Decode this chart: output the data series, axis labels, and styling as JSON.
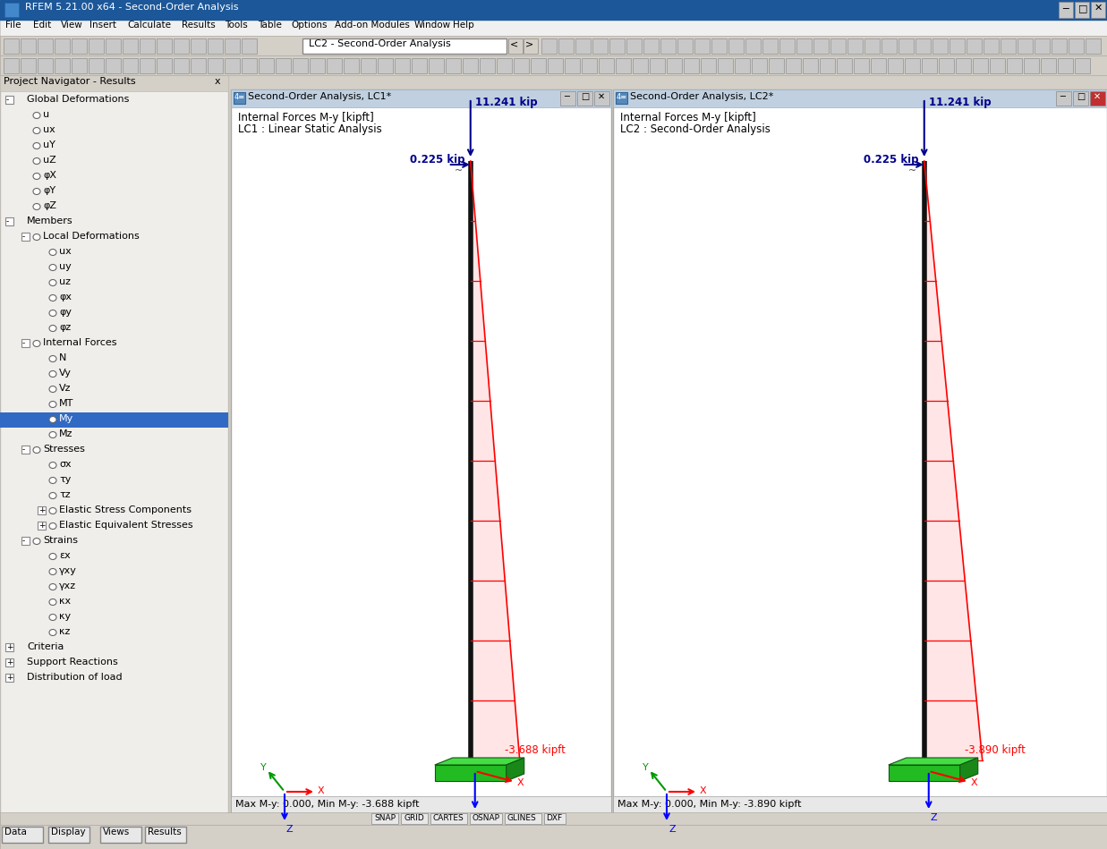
{
  "title_bar": "RFEM 5.21.00 x64 - Second-Order Analysis",
  "menu_items": [
    "File",
    "Edit",
    "View",
    "Insert",
    "Calculate",
    "Results",
    "Tools",
    "Table",
    "Options",
    "Add-on Modules",
    "Window",
    "Help"
  ],
  "lc_dropdown": "LC2 - Second-Order Analysis",
  "nav_title": "Project Navigator - Results",
  "panel1_title": "Second-Order Analysis, LC1*",
  "panel1_line1": "Internal Forces M-y [kipft]",
  "panel1_line2": "LC1 : Linear Static Analysis",
  "panel1_force1": "11.241 kip",
  "panel1_force2": "0.225 kip",
  "panel1_moment": "-3.688 kipft",
  "panel1_status": "Max M-y: 0.000, Min M-y: -3.688 kipft",
  "panel2_title": "Second-Order Analysis, LC2*",
  "panel2_line1": "Internal Forces M-y [kipft]",
  "panel2_line2": "LC2 : Second-Order Analysis",
  "panel2_force1": "11.241 kip",
  "panel2_force2": "0.225 kip",
  "panel2_moment": "-3.890 kipft",
  "panel2_status": "Max M-y: 0.000, Min M-y: -3.890 kipft",
  "bg_color": "#d4d0c8",
  "panel_bg": "#ffffff",
  "titlebar_blue": "#1a5799",
  "panel_titlebar": "#bdd0e0",
  "force_color": "#00008b",
  "moment_color": "#cc0000",
  "base_green": "#33cc33",
  "snap_buttons": [
    "SNAP",
    "GRID",
    "CARTES",
    "OSNAP",
    "GLINES",
    "DXF"
  ],
  "nav_tree": [
    {
      "label": "Global Deformations",
      "indent": 0,
      "selected": false,
      "has_expand": true,
      "expanded": true
    },
    {
      "label": "u",
      "indent": 1,
      "selected": false,
      "has_expand": false
    },
    {
      "label": "ux",
      "indent": 1,
      "selected": false,
      "has_expand": false
    },
    {
      "label": "uY",
      "indent": 1,
      "selected": false,
      "has_expand": false
    },
    {
      "label": "uZ",
      "indent": 1,
      "selected": false,
      "has_expand": false
    },
    {
      "label": "φX",
      "indent": 1,
      "selected": false,
      "has_expand": false
    },
    {
      "label": "φY",
      "indent": 1,
      "selected": false,
      "has_expand": false
    },
    {
      "label": "φZ",
      "indent": 1,
      "selected": false,
      "has_expand": false
    },
    {
      "label": "Members",
      "indent": 0,
      "selected": false,
      "has_expand": true,
      "expanded": true
    },
    {
      "label": "Local Deformations",
      "indent": 1,
      "selected": false,
      "has_expand": true,
      "expanded": true
    },
    {
      "label": "ux",
      "indent": 2,
      "selected": false,
      "has_expand": false
    },
    {
      "label": "uy",
      "indent": 2,
      "selected": false,
      "has_expand": false
    },
    {
      "label": "uz",
      "indent": 2,
      "selected": false,
      "has_expand": false
    },
    {
      "label": "φx",
      "indent": 2,
      "selected": false,
      "has_expand": false
    },
    {
      "label": "φy",
      "indent": 2,
      "selected": false,
      "has_expand": false
    },
    {
      "label": "φz",
      "indent": 2,
      "selected": false,
      "has_expand": false
    },
    {
      "label": "Internal Forces",
      "indent": 1,
      "selected": false,
      "has_expand": true,
      "expanded": true
    },
    {
      "label": "N",
      "indent": 2,
      "selected": false,
      "has_expand": false
    },
    {
      "label": "Vy",
      "indent": 2,
      "selected": false,
      "has_expand": false
    },
    {
      "label": "Vz",
      "indent": 2,
      "selected": false,
      "has_expand": false
    },
    {
      "label": "MT",
      "indent": 2,
      "selected": false,
      "has_expand": false
    },
    {
      "label": "My",
      "indent": 2,
      "selected": true,
      "has_expand": false
    },
    {
      "label": "Mz",
      "indent": 2,
      "selected": false,
      "has_expand": false
    },
    {
      "label": "Stresses",
      "indent": 1,
      "selected": false,
      "has_expand": true,
      "expanded": true
    },
    {
      "label": "σx",
      "indent": 2,
      "selected": false,
      "has_expand": false
    },
    {
      "label": "τy",
      "indent": 2,
      "selected": false,
      "has_expand": false
    },
    {
      "label": "τz",
      "indent": 2,
      "selected": false,
      "has_expand": false
    },
    {
      "label": "Elastic Stress Components",
      "indent": 2,
      "selected": false,
      "has_expand": true
    },
    {
      "label": "Elastic Equivalent Stresses",
      "indent": 2,
      "selected": false,
      "has_expand": true
    },
    {
      "label": "Strains",
      "indent": 1,
      "selected": false,
      "has_expand": true,
      "expanded": true
    },
    {
      "label": "εx",
      "indent": 2,
      "selected": false,
      "has_expand": false
    },
    {
      "label": "γxy",
      "indent": 2,
      "selected": false,
      "has_expand": false
    },
    {
      "label": "γxz",
      "indent": 2,
      "selected": false,
      "has_expand": false
    },
    {
      "label": "κx",
      "indent": 2,
      "selected": false,
      "has_expand": false
    },
    {
      "label": "κy",
      "indent": 2,
      "selected": false,
      "has_expand": false
    },
    {
      "label": "κz",
      "indent": 2,
      "selected": false,
      "has_expand": false
    },
    {
      "label": "Criteria",
      "indent": 0,
      "selected": false,
      "has_expand": true
    },
    {
      "label": "Support Reactions",
      "indent": 0,
      "selected": false,
      "has_expand": true
    },
    {
      "label": "Distribution of load",
      "indent": 0,
      "selected": false,
      "has_expand": true
    }
  ]
}
